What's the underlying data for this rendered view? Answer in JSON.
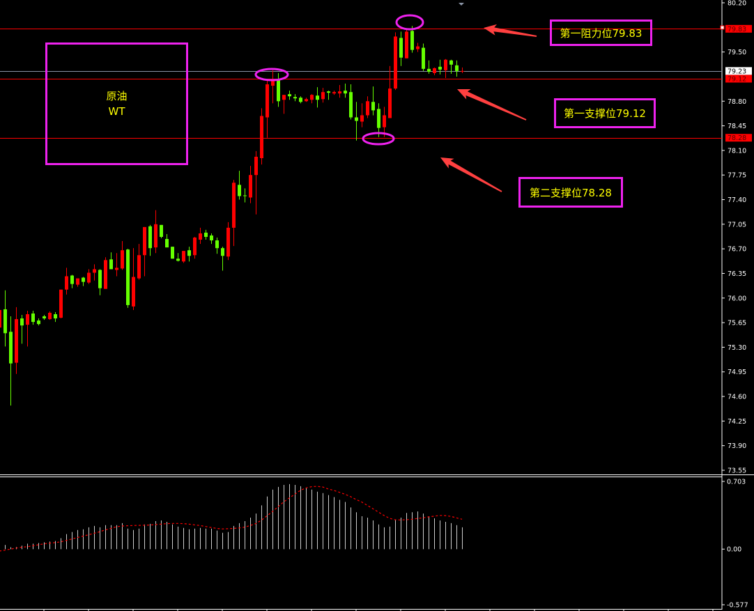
{
  "chart_data": {
    "type": "candlestick",
    "instrument_label": [
      "原油",
      "WT"
    ],
    "colors": {
      "up": "#ff0000",
      "down": "#66ff00",
      "background": "#000000",
      "axis": "#ffffff",
      "annotation_border": "#ee22ee",
      "annotation_text": "#ffff00",
      "arrow": "#ff4040",
      "histogram": "#d0d0d0",
      "signal": "#ff0000",
      "bid_line": "#8a94a6"
    },
    "price_axis": {
      "ylim": [
        73.55,
        80.2
      ],
      "ticks": [
        "80.20",
        "79.50",
        "78.80",
        "78.45",
        "78.10",
        "77.75",
        "77.40",
        "77.05",
        "76.70",
        "76.35",
        "76.00",
        "75.65",
        "75.30",
        "74.95",
        "74.60",
        "74.25",
        "73.90",
        "73.55"
      ]
    },
    "oscillator_axis": {
      "ylim": [
        -0.577,
        0.703
      ],
      "ticks": [
        "0.703",
        "0.00",
        "-0.577"
      ]
    },
    "ohlc": [
      [
        75.58,
        75.95,
        75.5,
        75.83
      ],
      [
        75.84,
        76.11,
        75.31,
        75.5
      ],
      [
        75.52,
        75.74,
        74.47,
        75.07
      ],
      [
        75.08,
        75.87,
        74.92,
        75.7
      ],
      [
        75.71,
        75.76,
        75.35,
        75.61
      ],
      [
        75.62,
        75.82,
        75.31,
        75.77
      ],
      [
        75.78,
        75.82,
        75.62,
        75.66
      ],
      [
        75.68,
        75.71,
        75.61,
        75.63
      ],
      [
        75.74,
        75.76,
        75.69,
        75.71
      ],
      [
        75.7,
        75.81,
        75.69,
        75.79
      ],
      [
        75.77,
        75.8,
        75.66,
        75.71
      ],
      [
        75.72,
        76.12,
        75.71,
        76.12
      ],
      [
        76.12,
        76.43,
        76.05,
        76.31
      ],
      [
        76.32,
        76.33,
        76.14,
        76.2
      ],
      [
        76.19,
        76.28,
        76.16,
        76.28
      ],
      [
        76.29,
        76.3,
        76.17,
        76.23
      ],
      [
        76.22,
        76.41,
        76.2,
        76.36
      ],
      [
        76.36,
        76.48,
        76.25,
        76.41
      ],
      [
        76.4,
        76.41,
        76.04,
        76.14
      ],
      [
        76.13,
        76.58,
        76.13,
        76.54
      ],
      [
        76.55,
        76.65,
        76.41,
        76.41
      ],
      [
        76.4,
        76.64,
        76.31,
        76.43
      ],
      [
        76.42,
        76.81,
        76.4,
        76.68
      ],
      [
        76.69,
        76.7,
        75.86,
        75.9
      ],
      [
        75.88,
        76.71,
        75.83,
        76.3
      ],
      [
        76.28,
        76.77,
        76.26,
        76.61
      ],
      [
        76.61,
        77.01,
        76.31,
        77.01
      ],
      [
        77.02,
        77.04,
        76.6,
        76.71
      ],
      [
        76.72,
        77.25,
        76.64,
        77.05
      ],
      [
        77.04,
        77.04,
        76.85,
        76.87
      ],
      [
        76.84,
        76.91,
        76.72,
        76.72
      ],
      [
        76.73,
        76.73,
        76.56,
        76.56
      ],
      [
        76.56,
        76.64,
        76.52,
        76.53
      ],
      [
        76.52,
        76.67,
        76.5,
        76.67
      ],
      [
        76.68,
        76.73,
        76.52,
        76.6
      ],
      [
        76.61,
        76.87,
        76.56,
        76.86
      ],
      [
        76.83,
        77.0,
        76.77,
        76.92
      ],
      [
        76.93,
        76.97,
        76.83,
        76.87
      ],
      [
        76.89,
        76.92,
        76.77,
        76.82
      ],
      [
        76.82,
        76.86,
        76.63,
        76.71
      ],
      [
        76.71,
        76.73,
        76.39,
        76.6
      ],
      [
        76.59,
        77.08,
        76.54,
        77.0
      ],
      [
        77.0,
        77.68,
        76.74,
        77.64
      ],
      [
        77.61,
        77.81,
        77.4,
        77.45
      ],
      [
        77.46,
        77.56,
        77.36,
        77.45
      ],
      [
        77.43,
        77.88,
        77.35,
        77.75
      ],
      [
        77.75,
        78.09,
        77.19,
        78.01
      ],
      [
        77.99,
        78.7,
        77.9,
        78.59
      ],
      [
        78.57,
        79.1,
        78.28,
        79.04
      ],
      [
        79.02,
        79.24,
        78.77,
        79.09
      ],
      [
        79.1,
        79.2,
        78.72,
        78.8
      ],
      [
        78.82,
        78.89,
        78.62,
        78.89
      ],
      [
        78.9,
        78.95,
        78.82,
        78.87
      ],
      [
        78.86,
        78.9,
        78.8,
        78.84
      ],
      [
        78.85,
        78.87,
        78.77,
        78.79
      ],
      [
        78.8,
        78.85,
        78.79,
        78.83
      ],
      [
        78.82,
        78.9,
        78.77,
        78.89
      ],
      [
        78.88,
        79.0,
        78.71,
        78.82
      ],
      [
        78.83,
        78.99,
        78.78,
        78.93
      ],
      [
        78.94,
        78.95,
        78.82,
        78.92
      ],
      [
        78.91,
        78.95,
        78.89,
        78.93
      ],
      [
        78.91,
        79.03,
        78.85,
        78.94
      ],
      [
        78.95,
        79.05,
        78.85,
        78.91
      ],
      [
        78.93,
        79.04,
        78.54,
        78.57
      ],
      [
        78.57,
        78.79,
        78.24,
        78.52
      ],
      [
        78.51,
        78.77,
        78.43,
        78.6
      ],
      [
        78.6,
        78.87,
        78.56,
        78.8
      ],
      [
        78.79,
        79.01,
        78.6,
        78.67
      ],
      [
        78.69,
        78.77,
        78.29,
        78.42
      ],
      [
        78.43,
        78.72,
        78.29,
        78.6
      ],
      [
        78.56,
        79.3,
        78.56,
        78.98
      ],
      [
        78.98,
        79.78,
        78.96,
        79.72
      ],
      [
        79.7,
        79.79,
        79.3,
        79.42
      ],
      [
        79.41,
        79.83,
        79.41,
        79.79
      ],
      [
        79.8,
        79.87,
        79.49,
        79.53
      ],
      [
        79.54,
        79.63,
        79.5,
        79.58
      ],
      [
        79.56,
        79.62,
        79.23,
        79.26
      ],
      [
        79.26,
        79.38,
        79.19,
        79.22
      ],
      [
        79.2,
        79.28,
        79.17,
        79.27
      ],
      [
        79.29,
        79.39,
        79.18,
        79.25
      ],
      [
        79.24,
        79.4,
        79.13,
        79.39
      ],
      [
        79.38,
        79.39,
        79.19,
        79.32
      ],
      [
        79.31,
        79.38,
        79.15,
        79.23
      ],
      [
        79.23,
        79.28,
        79.2,
        79.23
      ]
    ],
    "histogram": [
      null,
      0.043,
      0.02,
      0.021,
      0.036,
      0.057,
      0.057,
      0.064,
      0.071,
      0.078,
      0.085,
      0.114,
      0.156,
      0.178,
      0.199,
      0.206,
      0.227,
      0.241,
      0.227,
      0.249,
      0.249,
      0.249,
      0.27,
      0.213,
      0.199,
      0.213,
      0.256,
      0.263,
      0.291,
      0.298,
      0.284,
      0.256,
      0.234,
      0.22,
      0.206,
      0.213,
      0.22,
      0.213,
      0.213,
      0.192,
      0.17,
      0.178,
      0.241,
      0.27,
      0.291,
      0.327,
      0.369,
      0.454,
      0.547,
      0.618,
      0.646,
      0.667,
      0.675,
      0.667,
      0.653,
      0.639,
      0.618,
      0.596,
      0.582,
      0.561,
      0.54,
      0.511,
      0.49,
      0.433,
      0.383,
      0.341,
      0.327,
      0.298,
      0.256,
      0.227,
      0.234,
      0.305,
      0.327,
      0.376,
      0.383,
      0.391,
      0.369,
      0.341,
      0.32,
      0.298,
      0.284,
      0.27,
      0.249,
      0.227
    ],
    "signal": [
      -0.02,
      -0.01,
      0.0,
      0.01,
      0.02,
      0.025,
      0.035,
      0.045,
      0.055,
      0.062,
      0.068,
      0.075,
      0.09,
      0.105,
      0.12,
      0.135,
      0.148,
      0.165,
      0.18,
      0.2,
      0.215,
      0.232,
      0.24,
      0.243,
      0.245,
      0.247,
      0.248,
      0.25,
      0.255,
      0.26,
      0.265,
      0.267,
      0.267,
      0.265,
      0.26,
      0.252,
      0.245,
      0.235,
      0.225,
      0.215,
      0.21,
      0.212,
      0.215,
      0.22,
      0.228,
      0.245,
      0.265,
      0.3,
      0.345,
      0.39,
      0.44,
      0.49,
      0.53,
      0.57,
      0.61,
      0.635,
      0.648,
      0.652,
      0.645,
      0.625,
      0.61,
      0.59,
      0.57,
      0.545,
      0.515,
      0.49,
      0.455,
      0.42,
      0.385,
      0.35,
      0.32,
      0.305,
      0.303,
      0.305,
      0.31,
      0.318,
      0.325,
      0.335,
      0.342,
      0.35,
      0.348,
      0.34,
      0.325,
      0.31
    ],
    "levels": [
      {
        "label": "79.83",
        "value": 79.83,
        "style": "red",
        "annotation": "第一阻力位79.83"
      },
      {
        "label": "79.23",
        "value": 79.23,
        "style": "bid"
      },
      {
        "label": "79.12",
        "value": 79.12,
        "style": "red",
        "annotation": "第一支撑位79.12"
      },
      {
        "label": "78.28",
        "value": 78.28,
        "style": "red",
        "annotation": "第二支撑位78.28"
      }
    ]
  }
}
